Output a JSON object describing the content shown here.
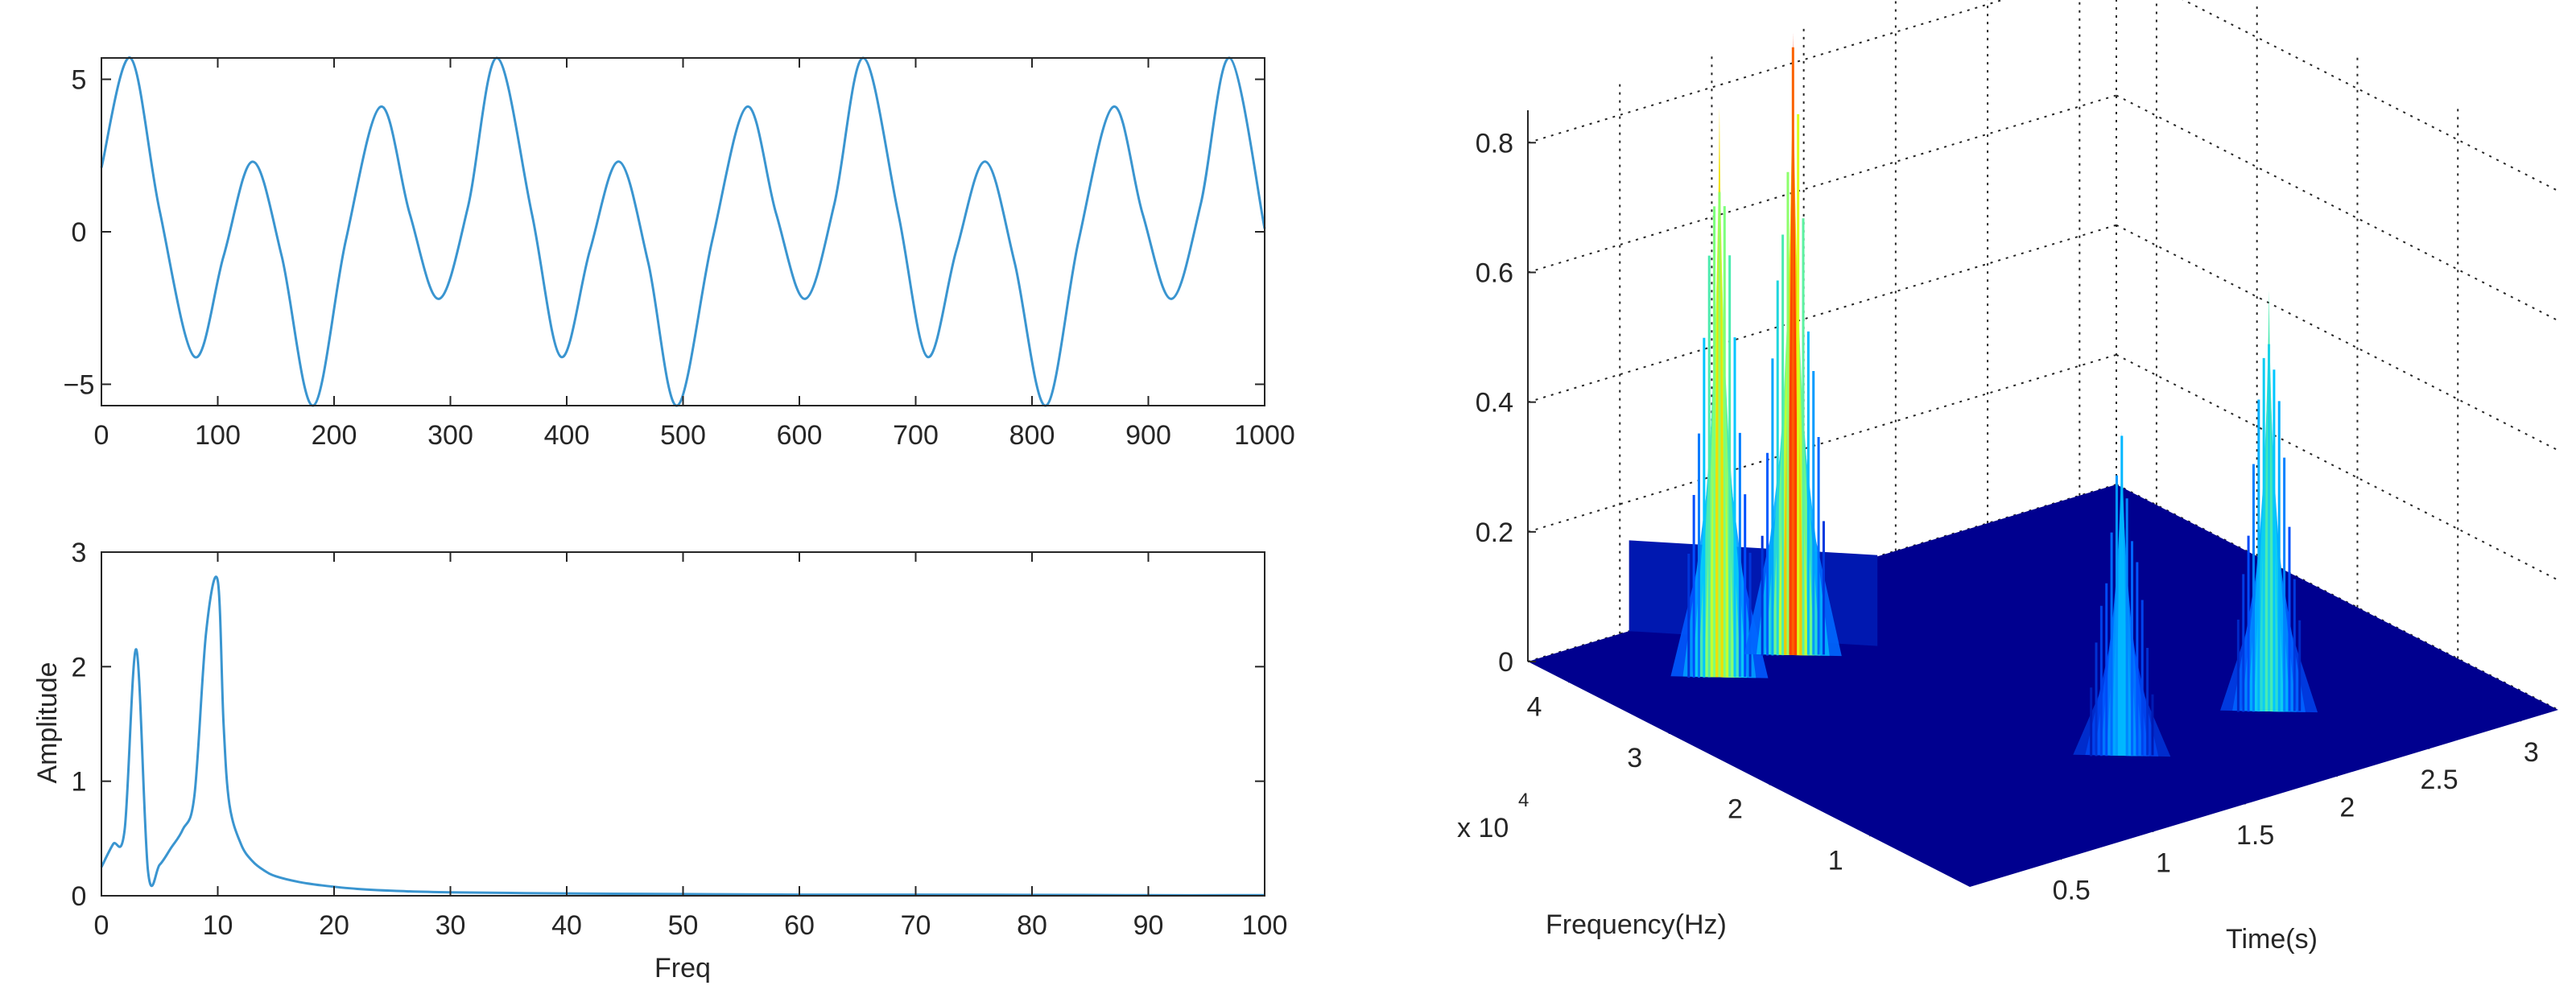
{
  "colors": {
    "line": "#3a95d0",
    "axis": "#262626",
    "surface_low": "#00008f",
    "surface_mid": "#00a0ff",
    "surface_hi": "#f0ff00",
    "surface_peak": "#ff3000"
  },
  "chart_data": [
    {
      "type": "line",
      "title": "",
      "xlabel": "",
      "ylabel": "",
      "xlim": [
        0,
        1000
      ],
      "ylim": [
        -5.7,
        5.7
      ],
      "xticks": [
        "0",
        "100",
        "200",
        "300",
        "400",
        "500",
        "600",
        "700",
        "800",
        "900",
        "1000"
      ],
      "yticks": [
        "5",
        "0",
        "−5"
      ],
      "ytick_values": [
        5,
        0,
        -5
      ],
      "grid": false,
      "series": [
        {
          "x": [
            0,
            25,
            50,
            80,
            105,
            130,
            155,
            182,
            210,
            240,
            265,
            290,
            315,
            340,
            370,
            395,
            420,
            445,
            470,
            495,
            525,
            555,
            580,
            605,
            630,
            655,
            685,
            710,
            735,
            760,
            785,
            812,
            840,
            870,
            895,
            920,
            945,
            970,
            1000
          ],
          "y": [
            2.1,
            5.7,
            0.7,
            -4.1,
            -0.8,
            2.3,
            -0.8,
            -5.7,
            -0.3,
            4.1,
            0.6,
            -2.2,
            0.8,
            5.7,
            0.6,
            -4.1,
            -0.6,
            2.3,
            -1.0,
            -5.7,
            -0.3,
            4.1,
            0.6,
            -2.2,
            0.9,
            5.7,
            0.6,
            -4.1,
            -0.6,
            2.3,
            -1.0,
            -5.7,
            -0.3,
            4.1,
            0.6,
            -2.2,
            0.9,
            5.7,
            0.1
          ]
        }
      ]
    },
    {
      "type": "line",
      "title": "",
      "xlabel": "Freq",
      "ylabel": "Amplitude",
      "xlim": [
        0,
        100
      ],
      "ylim": [
        0,
        3
      ],
      "xticks": [
        "0",
        "10",
        "20",
        "30",
        "40",
        "50",
        "60",
        "70",
        "80",
        "90",
        "100"
      ],
      "yticks": [
        "3",
        "2",
        "1",
        "0"
      ],
      "ytick_values": [
        3,
        2,
        1,
        0
      ],
      "grid": false,
      "series": [
        {
          "x": [
            0,
            1,
            2,
            3,
            4,
            5,
            6,
            7,
            8,
            9,
            10,
            10.5,
            11,
            12,
            13,
            14,
            15,
            17,
            19,
            22,
            26,
            30,
            40,
            50,
            60,
            70,
            80,
            90,
            100
          ],
          "y": [
            0.25,
            0.45,
            0.58,
            2.15,
            0.22,
            0.27,
            0.42,
            0.58,
            0.88,
            2.3,
            2.75,
            1.5,
            0.8,
            0.45,
            0.3,
            0.22,
            0.17,
            0.12,
            0.09,
            0.06,
            0.04,
            0.03,
            0.02,
            0.015,
            0.01,
            0.01,
            0.008,
            0.005,
            0.005
          ]
        }
      ]
    },
    {
      "type": "surface",
      "title": "",
      "xlabel": "Time(s)",
      "ylabel": "Frequency(Hz)",
      "y_multiplier": "x 10",
      "y_multiplier_exponent": "4",
      "xlim": [
        0,
        3.2
      ],
      "ylim": [
        0,
        4.4
      ],
      "zlim": [
        0,
        0.85
      ],
      "xticks": [
        "0.5",
        "1",
        "1.5",
        "2",
        "2.5",
        "3"
      ],
      "xtick_values": [
        0.5,
        1,
        1.5,
        2,
        2.5,
        3
      ],
      "yticks": [
        "1",
        "2",
        "3",
        "4"
      ],
      "ytick_values": [
        1,
        2,
        3,
        4
      ],
      "zticks": [
        "0",
        "0.2",
        "0.4",
        "0.6",
        "0.8"
      ],
      "ztick_values": [
        0,
        0.2,
        0.4,
        0.6,
        0.8
      ],
      "grid": true,
      "peaks": [
        {
          "time": 0.55,
          "freq": 3.5,
          "amplitude": 0.88
        },
        {
          "time": 0.95,
          "freq": 3.5,
          "amplitude": 0.96
        },
        {
          "time": 1.4,
          "freq": 1.05,
          "amplitude": 0.5
        },
        {
          "time": 2.2,
          "freq": 1.05,
          "amplitude": 0.65
        }
      ]
    }
  ]
}
